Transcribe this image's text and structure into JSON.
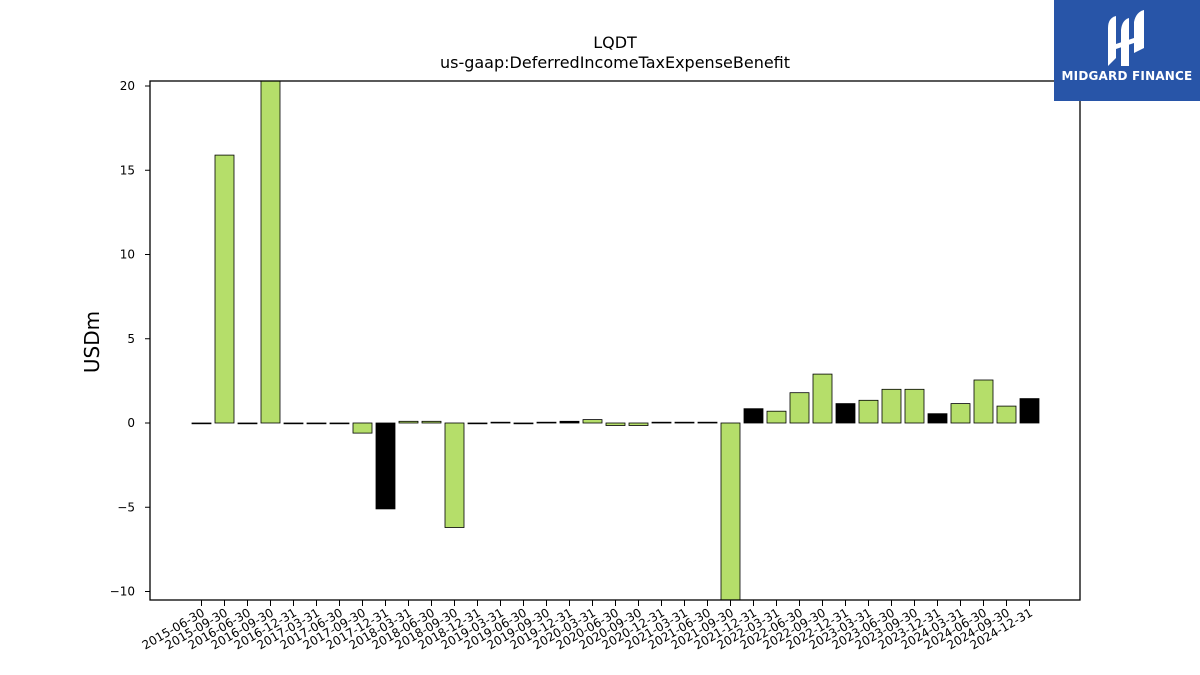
{
  "chart_data": {
    "type": "bar",
    "title": "LQDT",
    "subtitle": "us-gaap:DeferredIncomeTaxExpenseBenefit",
    "xlabel": "",
    "ylabel": "USDm",
    "ylim": [
      -10.5,
      20.2
    ],
    "yticks": [
      -10,
      -5,
      0,
      5,
      10,
      15,
      20
    ],
    "ytick_labels": [
      "−10",
      "−5",
      "0",
      "5",
      "10",
      "15",
      "20"
    ],
    "grid": false,
    "categories": [
      "2015-06-30",
      "2015-09-30",
      "2016-06-30",
      "2016-09-30",
      "2016-12-31",
      "2017-03-31",
      "2017-06-30",
      "2017-09-30",
      "2017-12-31",
      "2018-03-31",
      "2018-06-30",
      "2018-09-30",
      "2018-12-31",
      "2019-03-31",
      "2019-06-30",
      "2019-09-30",
      "2019-12-31",
      "2020-03-31",
      "2020-06-30",
      "2020-09-30",
      "2020-12-31",
      "2021-03-31",
      "2021-06-30",
      "2021-09-30",
      "2021-12-31",
      "2022-03-31",
      "2022-06-30",
      "2022-09-30",
      "2022-12-31",
      "2023-03-31",
      "2023-06-30",
      "2023-09-30",
      "2023-12-31",
      "2024-03-31",
      "2024-06-30",
      "2024-09-30",
      "2024-12-31"
    ],
    "values": [
      0,
      15.9,
      0,
      20.3,
      0,
      0,
      0,
      -0.6,
      -5.1,
      0.1,
      0.1,
      -6.2,
      0,
      0.05,
      0,
      0.05,
      0.1,
      0.2,
      -0.15,
      -0.15,
      0.05,
      0.05,
      0.05,
      -10.6,
      0.85,
      0.7,
      1.8,
      2.9,
      1.15,
      1.35,
      2.0,
      2.0,
      0.55,
      1.15,
      2.55,
      1.0,
      1.45
    ],
    "bar_colors": [
      "#b5de6a",
      "#b5de6a",
      "#b5de6a",
      "#b5de6a",
      "#b5de6a",
      "#b5de6a",
      "#b5de6a",
      "#b5de6a",
      "#000000",
      "#b5de6a",
      "#b5de6a",
      "#b5de6a",
      "#b5de6a",
      "#000000",
      "#b5de6a",
      "#b5de6a",
      "#000000",
      "#b5de6a",
      "#b5de6a",
      "#b5de6a",
      "#000000",
      "#b5de6a",
      "#b5de6a",
      "#b5de6a",
      "#000000",
      "#b5de6a",
      "#b5de6a",
      "#b5de6a",
      "#000000",
      "#b5de6a",
      "#b5de6a",
      "#b5de6a",
      "#000000",
      "#b5de6a",
      "#b5de6a",
      "#b5de6a",
      "#000000"
    ]
  },
  "logo": {
    "text": "MIDGARD FINANCE",
    "background": "#2855a8"
  }
}
